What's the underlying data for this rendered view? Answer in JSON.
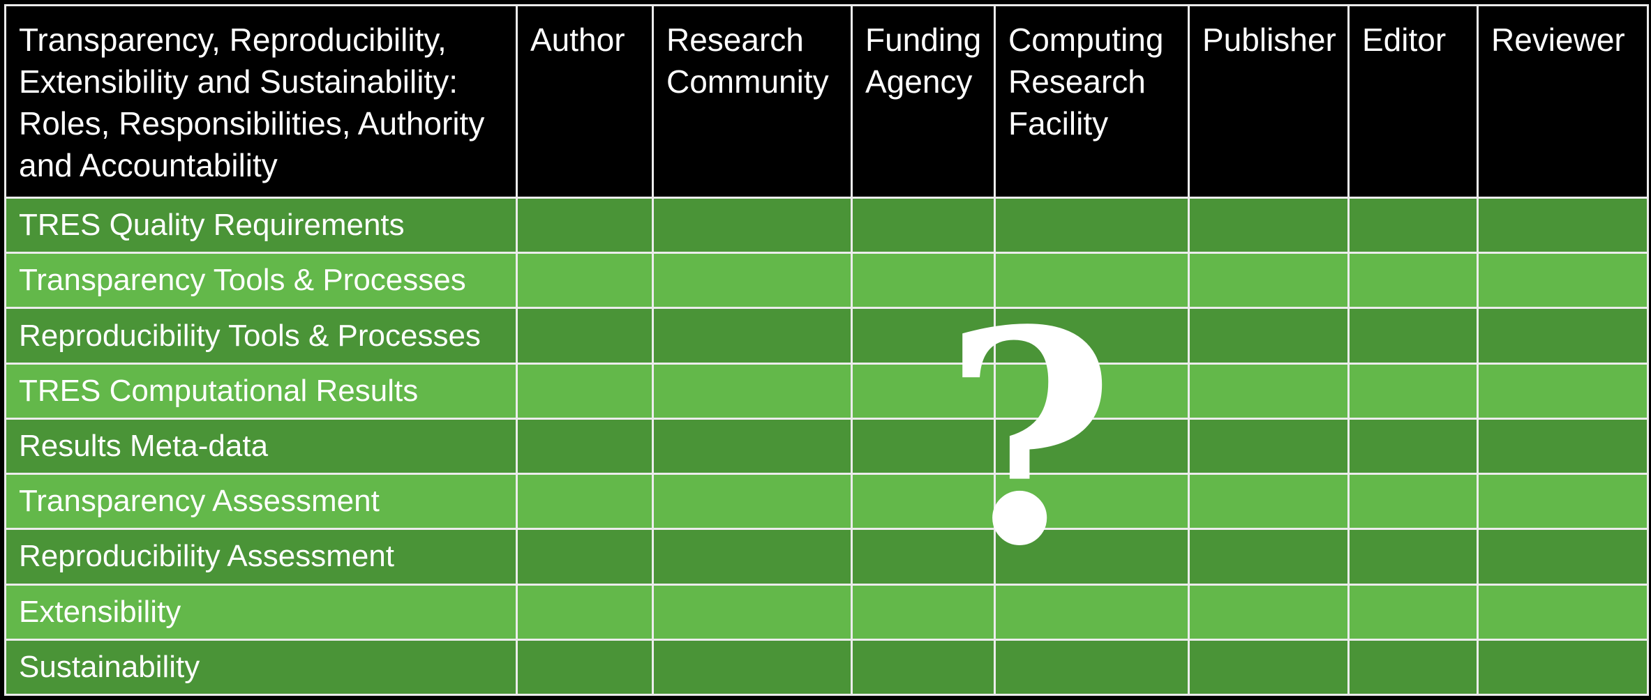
{
  "table": {
    "corner_header": "Transparency, Reproducibility,\nExtensibility and Sustainability:\nRoles, Responsibilities, Authority\nand Accountability",
    "columns": [
      "Author",
      "Research\nCommunity",
      "Funding\nAgency",
      "Computing\nResearch\nFacility",
      "Publisher",
      "Editor",
      "Reviewer"
    ],
    "rows": [
      "TRES Quality Requirements",
      "Transparency Tools & Processes",
      "Reproducibility Tools & Processes",
      "TRES Computational Results",
      "Results Meta-data",
      "Transparency Assessment",
      "Reproducibility Assessment",
      "Extensibility",
      "Sustainability"
    ]
  },
  "overlay": {
    "symbol": "?"
  },
  "colors": {
    "header_background": "#000000",
    "row_dark": "#4a9437",
    "row_light": "#63b84a",
    "grid_line": "#ececec",
    "text": "#ffffff"
  }
}
